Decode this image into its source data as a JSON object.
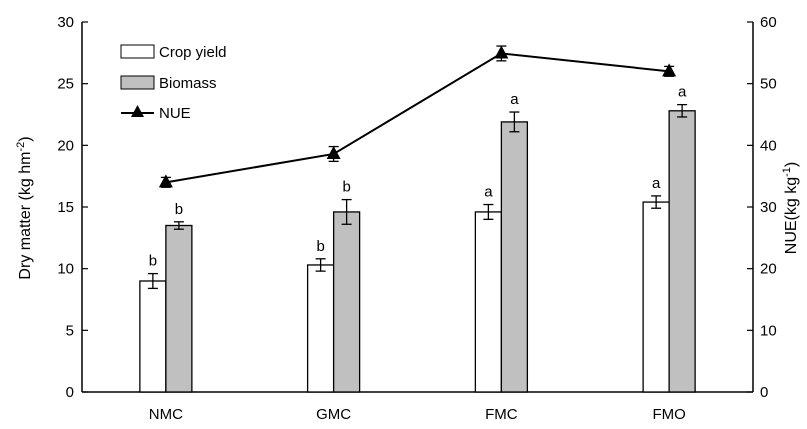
{
  "chart_data": {
    "type": "bar",
    "categories": [
      "NMC",
      "GMC",
      "FMC",
      "FMO"
    ],
    "y_left": {
      "label": "Dry matter (kg hm",
      "label_sup": "-2",
      "label_end": ")",
      "ylim": [
        0,
        30
      ],
      "ticks": [
        "0",
        "5",
        "10",
        "15",
        "20",
        "25",
        "30"
      ]
    },
    "y_right": {
      "label": "NUE(kg kg",
      "label_sup": "-1",
      "label_end": ")",
      "ylim": [
        0,
        60
      ],
      "ticks": [
        "0",
        "10",
        "20",
        "30",
        "40",
        "50",
        "60"
      ]
    },
    "series": [
      {
        "name": "Crop yield",
        "kind": "bar",
        "axis": "left",
        "fill": "#ffffff",
        "values": [
          9.0,
          10.3,
          14.6,
          15.4
        ],
        "errors": [
          0.6,
          0.5,
          0.6,
          0.5
        ],
        "sig_labels": [
          "b",
          "b",
          "a",
          "a"
        ]
      },
      {
        "name": "Biomass",
        "kind": "bar",
        "axis": "left",
        "fill": "#c0c0c0",
        "values": [
          13.5,
          14.6,
          21.9,
          22.8
        ],
        "errors": [
          0.3,
          1.0,
          0.8,
          0.5
        ],
        "sig_labels": [
          "b",
          "b",
          "a",
          "a"
        ]
      },
      {
        "name": "NUE",
        "kind": "line",
        "axis": "right",
        "marker": "triangle",
        "color": "#000000",
        "values": [
          34.0,
          38.6,
          54.9,
          52.0
        ],
        "errors": [
          0.8,
          1.2,
          1.2,
          0.8
        ]
      }
    ],
    "legend": "top-left",
    "grid": false
  }
}
